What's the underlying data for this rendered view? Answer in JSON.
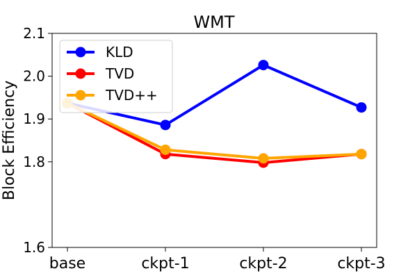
{
  "chart_data": {
    "type": "line",
    "title": "WMT",
    "xlabel": "",
    "ylabel": "Block Efficiency",
    "categories": [
      "base",
      "ckpt-1",
      "ckpt-2",
      "ckpt-3"
    ],
    "ylim": [
      1.6,
      2.1
    ],
    "yticks": [
      "1.6",
      "1.8",
      "1.9",
      "2.0",
      "2.1"
    ],
    "grid": false,
    "legend_position": "top-left",
    "series": [
      {
        "name": "KLD",
        "color": "#0000ff",
        "values": [
          1.937,
          1.886,
          2.026,
          1.927
        ]
      },
      {
        "name": "TVD",
        "color": "#ff0000",
        "values": [
          1.937,
          1.818,
          1.798,
          1.818
        ]
      },
      {
        "name": "TVD++",
        "color": "#ffa500",
        "values": [
          1.937,
          1.828,
          1.808,
          1.818
        ]
      }
    ]
  }
}
